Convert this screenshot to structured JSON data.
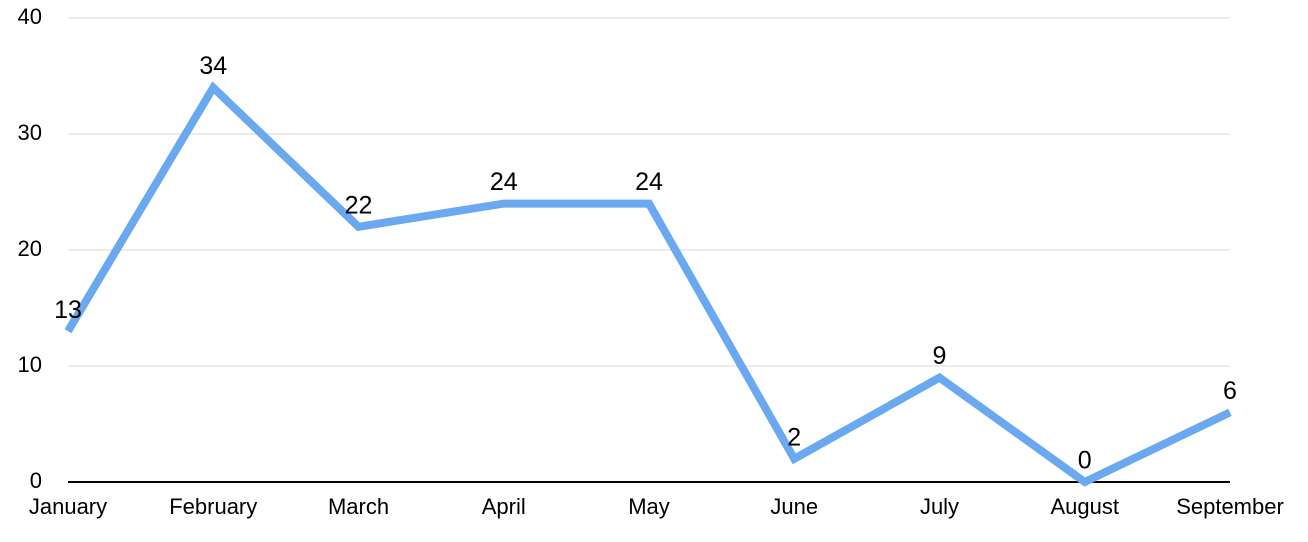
{
  "chart_data": {
    "type": "line",
    "categories": [
      "January",
      "February",
      "March",
      "April",
      "May",
      "June",
      "July",
      "August",
      "September"
    ],
    "series": [
      {
        "color": "#6aa8f0",
        "values": [
          13,
          34,
          22,
          24,
          24,
          2,
          9,
          0,
          6
        ]
      }
    ],
    "ylim": [
      0,
      40
    ],
    "yticks": [
      0,
      10,
      20,
      30,
      40
    ],
    "grid": true,
    "data_labels": true
  }
}
